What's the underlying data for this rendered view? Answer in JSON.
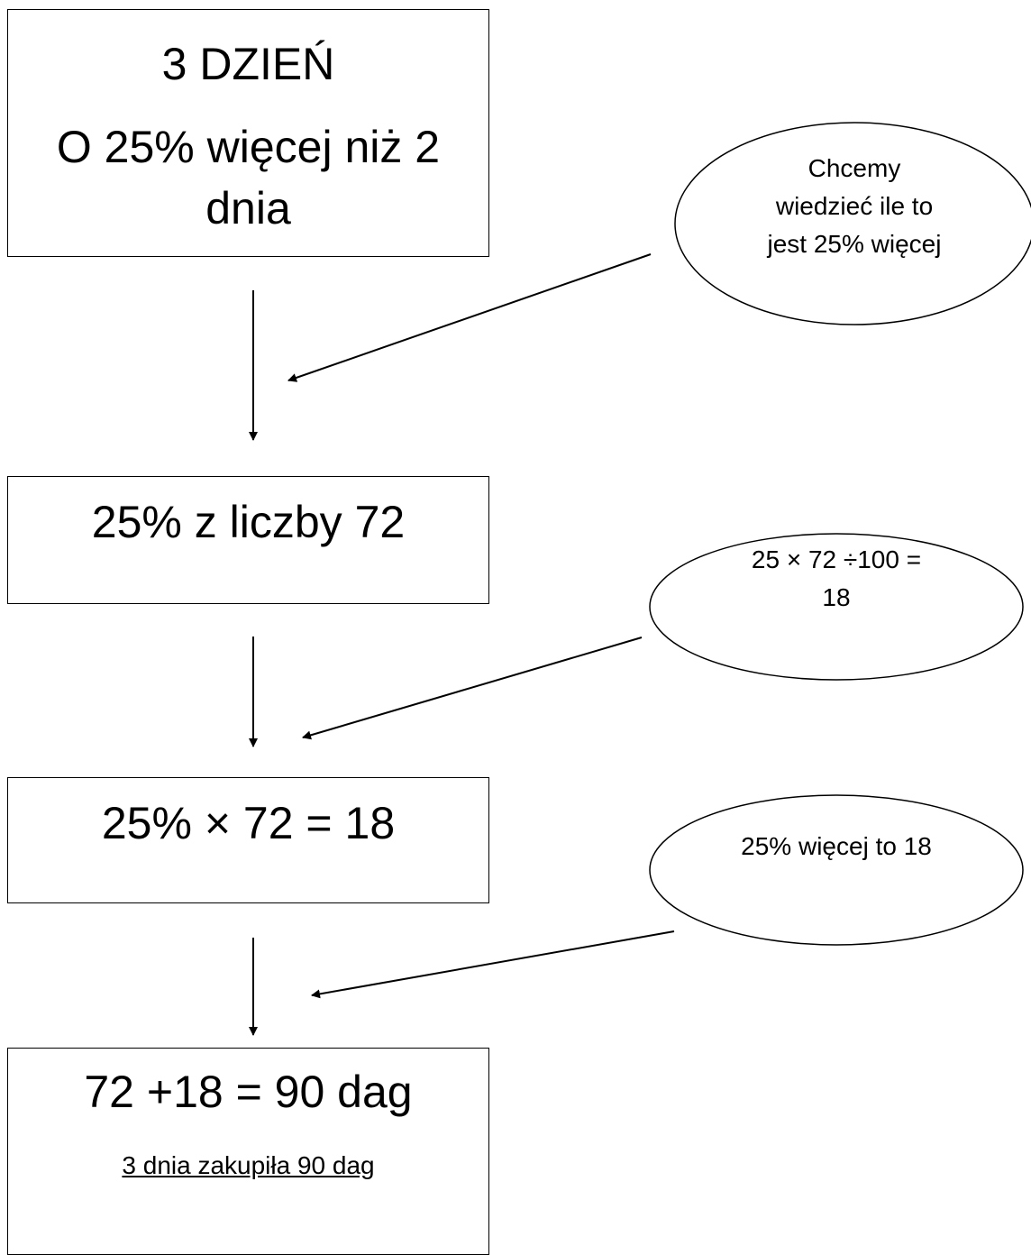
{
  "steps": [
    {
      "lines": [
        "3 DZIEŃ",
        "O 25% więcej niż 2",
        "dnia"
      ]
    },
    {
      "lines": [
        "25% z liczby 72"
      ]
    },
    {
      "lines": [
        "25% × 72 = 18"
      ]
    },
    {
      "lines": [
        "72 +18 = 90 dag"
      ],
      "note": "3 dnia zakupiła 90 dag"
    }
  ],
  "bubbles": [
    {
      "lines": [
        "Chcemy",
        "wiedzieć ile to",
        "jest 25% więcej"
      ]
    },
    {
      "lines": [
        "25 × 72 ÷100 =",
        "18"
      ]
    },
    {
      "lines": [
        "25% więcej to 18"
      ]
    }
  ]
}
